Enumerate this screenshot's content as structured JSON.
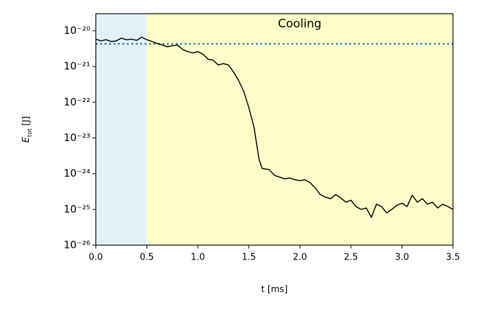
{
  "chart_data": {
    "type": "line",
    "annotation": "Cooling",
    "xlabel": "t [ms]",
    "ylabel": {
      "symbol": "E",
      "subscript": "tot",
      "unit": "[J]"
    },
    "log_y": true,
    "grid": false,
    "xlim": [
      0,
      3.5
    ],
    "ylim": [
      1e-26,
      3e-20
    ],
    "xticks": [
      {
        "value": 0,
        "label": "0.0"
      },
      0.5,
      {
        "value": 1,
        "label": "1.0"
      },
      1.5,
      {
        "value": 2,
        "label": "2.0"
      },
      2.5,
      {
        "value": 3,
        "label": "3.0"
      },
      3.5
    ],
    "yticks": [
      {
        "value": 1e-26,
        "label": "10⁻²⁶"
      },
      {
        "value": 1e-25,
        "label": "10⁻²⁵"
      },
      {
        "value": 1e-24,
        "label": "10⁻²⁴"
      },
      {
        "value": 1e-23,
        "label": "10⁻²³"
      },
      {
        "value": 1e-22,
        "label": "10⁻²²"
      },
      {
        "value": 1e-21,
        "label": "10⁻²¹"
      },
      {
        "value": 1e-20,
        "label": "10⁻²⁰"
      }
    ],
    "regions": [
      {
        "xlim": [
          0,
          0.5
        ],
        "color": "#e2f1f8"
      },
      {
        "xlim": [
          0.5,
          3.5
        ],
        "color": "#fdfdc9"
      }
    ],
    "hline": {
      "value": 4.3e-21,
      "color": "#1f77b4",
      "style": "dotted"
    },
    "series": [
      {
        "color": "#000000",
        "x": [
          0,
          0.05,
          0.1,
          0.15,
          0.2,
          0.25,
          0.3,
          0.35,
          0.4,
          0.45,
          0.5,
          0.55,
          0.6,
          0.65,
          0.7,
          0.75,
          0.8,
          0.85,
          0.9,
          0.95,
          1.0,
          1.05,
          1.1,
          1.15,
          1.2,
          1.25,
          1.3,
          1.35,
          1.4,
          1.45,
          1.5,
          1.55,
          1.6,
          1.63,
          1.7,
          1.75,
          1.8,
          1.85,
          1.9,
          1.95,
          2.0,
          2.05,
          2.1,
          2.15,
          2.2,
          2.25,
          2.3,
          2.35,
          2.4,
          2.45,
          2.5,
          2.55,
          2.6,
          2.65,
          2.7,
          2.75,
          2.8,
          2.85,
          2.9,
          2.95,
          3.0,
          3.05,
          3.1,
          3.15,
          3.2,
          3.25,
          3.3,
          3.35,
          3.4,
          3.45,
          3.5
        ],
        "values": [
          5.8e-21,
          5.2e-21,
          5.6e-21,
          5e-21,
          5.2e-21,
          6.2e-21,
          5.6e-21,
          5.8e-21,
          5.4e-21,
          6.6e-21,
          5.6e-21,
          5e-21,
          4.4e-21,
          4e-21,
          3.6e-21,
          3.8e-21,
          4e-21,
          3e-21,
          2.6e-21,
          2.4e-21,
          2.6e-21,
          2.2e-21,
          1.6e-21,
          1.5e-21,
          1.1e-21,
          1.2e-21,
          1.1e-21,
          7e-22,
          4e-22,
          2e-22,
          7e-23,
          2e-23,
          2.5e-24,
          1.4e-24,
          1.3e-24,
          9e-25,
          8e-25,
          7.2e-25,
          7.6e-25,
          6.8e-25,
          6.4e-25,
          6.8e-25,
          5.6e-25,
          4e-25,
          2.6e-25,
          2.2e-25,
          2e-25,
          2.6e-25,
          2.1e-25,
          1.6e-25,
          1.8e-25,
          1.2e-25,
          1e-25,
          1.1e-25,
          6e-26,
          1.4e-25,
          1.2e-25,
          8e-26,
          1e-25,
          1.3e-25,
          1.5e-25,
          1.2e-25,
          2.5e-25,
          1.6e-25,
          2e-25,
          1.4e-25,
          1.6e-25,
          1.1e-25,
          1.4e-25,
          1.2e-25,
          1e-25
        ]
      }
    ]
  }
}
